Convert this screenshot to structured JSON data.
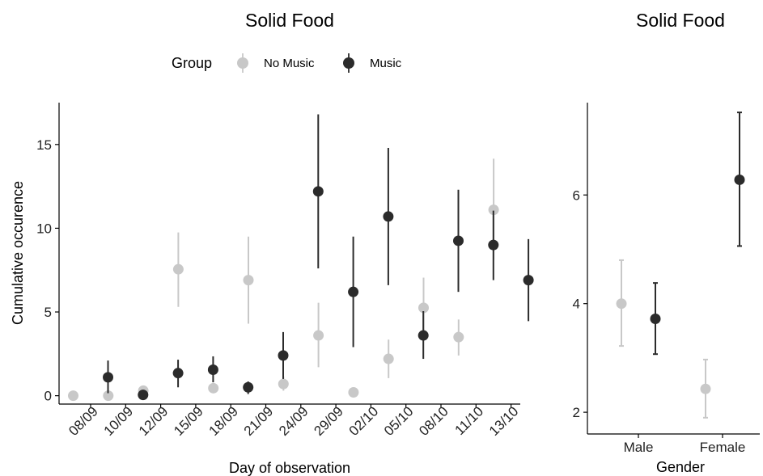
{
  "legend": {
    "title": "Group",
    "entries": [
      {
        "name": "No Music",
        "color": "#c8c8c8"
      },
      {
        "name": "Music",
        "color": "#2b2b2b"
      }
    ]
  },
  "chart_data": [
    {
      "type": "scatter",
      "subtype": "point-errorbar",
      "title": "Solid Food",
      "xlabel": "Day of observation",
      "ylabel": "Cumulative occurence",
      "categories": [
        "08/09",
        "10/09",
        "12/09",
        "15/09",
        "18/09",
        "21/09",
        "24/09",
        "29/09",
        "02/10",
        "05/10",
        "08/10",
        "11/10",
        "13/10"
      ],
      "yticks": [
        0,
        5,
        10,
        15
      ],
      "ylim": [
        -0.5,
        17.5
      ],
      "x_tick_rotation": -45,
      "grid": false,
      "legend_position": "top",
      "series": [
        {
          "name": "No Music",
          "color": "#c8c8c8",
          "values": [
            0.0,
            0.0,
            0.3,
            7.55,
            0.45,
            6.9,
            0.7,
            3.6,
            0.2,
            2.2,
            5.25,
            3.5,
            11.1
          ],
          "lower": [
            0.0,
            0.0,
            0.3,
            5.3,
            0.45,
            4.3,
            0.3,
            1.7,
            0.2,
            1.05,
            3.45,
            2.4,
            8.1
          ],
          "upper": [
            0.0,
            0.0,
            0.3,
            9.75,
            0.45,
            9.5,
            1.15,
            5.55,
            0.2,
            3.35,
            7.05,
            4.55,
            14.15
          ]
        },
        {
          "name": "Music",
          "color": "#2b2b2b",
          "values": [
            1.1,
            0.05,
            1.35,
            1.55,
            0.5,
            2.4,
            12.2,
            6.2,
            10.7,
            3.6,
            9.25,
            9.0,
            6.9
          ],
          "lower": [
            0.15,
            0.05,
            0.5,
            0.8,
            0.1,
            1.0,
            7.6,
            2.9,
            6.6,
            2.2,
            6.2,
            6.9,
            4.45
          ],
          "upper": [
            2.1,
            0.05,
            2.15,
            2.35,
            0.85,
            3.8,
            16.8,
            9.5,
            14.8,
            5.05,
            12.3,
            11.05,
            9.35
          ]
        }
      ]
    },
    {
      "type": "scatter",
      "subtype": "point-errorbar",
      "title": "Solid Food",
      "xlabel": "Gender",
      "ylabel": "",
      "categories": [
        "Male",
        "Female"
      ],
      "yticks": [
        2,
        4,
        6
      ],
      "ylim": [
        1.6,
        7.7
      ],
      "grid": false,
      "error_caps": true,
      "series": [
        {
          "name": "No Music",
          "color": "#c8c8c8",
          "values": [
            4.0,
            2.43
          ],
          "lower": [
            3.22,
            1.9
          ],
          "upper": [
            4.8,
            2.97
          ]
        },
        {
          "name": "Music",
          "color": "#2b2b2b",
          "values": [
            3.72,
            6.28
          ],
          "lower": [
            3.07,
            5.06
          ],
          "upper": [
            4.38,
            7.52
          ]
        }
      ]
    }
  ]
}
